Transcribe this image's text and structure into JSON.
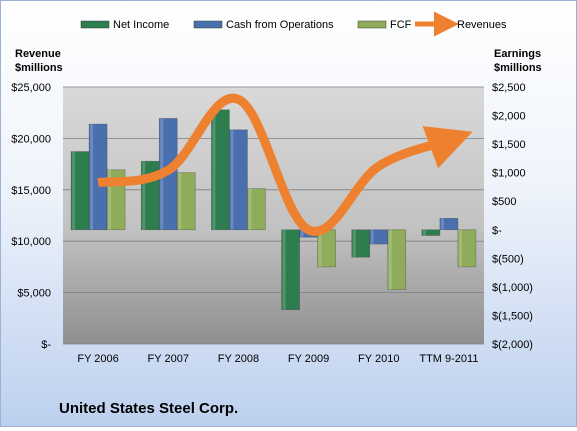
{
  "chart_data": {
    "type": "bar",
    "categories": [
      "FY 2006",
      "FY 2007",
      "FY 2008",
      "FY 2009",
      "FY 2010",
      "TTM 9-2011"
    ],
    "series": [
      {
        "name": "Net Income",
        "axis": "right",
        "color": "#2e7d4f",
        "values": [
          1370,
          1200,
          2100,
          -1400,
          -480,
          -100
        ]
      },
      {
        "name": "Cash from Operations",
        "axis": "right",
        "color": "#4a6fae",
        "values": [
          1850,
          1950,
          1750,
          -130,
          -250,
          200
        ]
      },
      {
        "name": "FCF",
        "axis": "right",
        "color": "#8fac5b",
        "values": [
          1050,
          1000,
          720,
          -650,
          -1050,
          -650
        ]
      },
      {
        "name": "Revenues",
        "axis": "left",
        "type": "line",
        "color": "#ee8130",
        "values": [
          15700,
          16900,
          23800,
          11100,
          17300,
          19800
        ]
      }
    ],
    "left_axis": {
      "title": [
        "Revenue",
        "$millions"
      ],
      "range": [
        0,
        25000
      ],
      "ticks": [
        "$25,000",
        "$20,000",
        "$15,000",
        "$10,000",
        "$5,000",
        "$-"
      ]
    },
    "right_axis": {
      "title": [
        "Earnings",
        "$millions"
      ],
      "range": [
        -2000,
        2500
      ],
      "ticks": [
        "$2,500",
        "$2,000",
        "$1,500",
        "$1,000",
        "$500",
        "$-",
        "$(500)",
        "$(1,000)",
        "$(1,500)",
        "$(2,000)"
      ]
    },
    "legend_position": "top",
    "grid": true
  },
  "company": "United States Steel Corp."
}
